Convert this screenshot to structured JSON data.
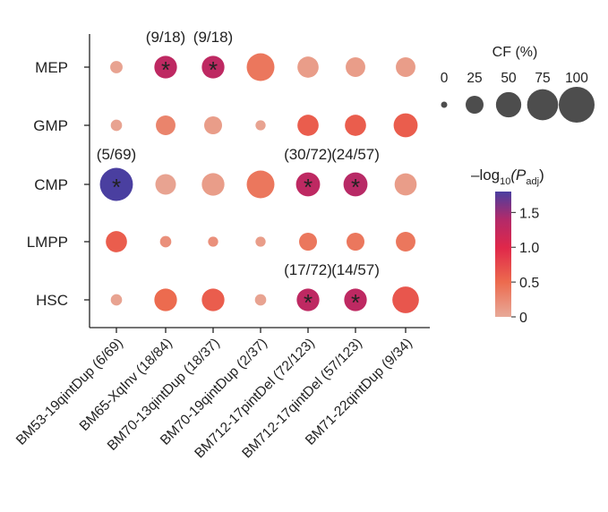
{
  "chart_data": {
    "type": "bubble",
    "rows": [
      "MEP",
      "GMP",
      "CMP",
      "LMPP",
      "HSC"
    ],
    "columns": [
      "BM53-19qintDup (6/69)",
      "BM65-XqInv (18/84)",
      "BM70-13qintDup (18/37)",
      "BM70-19qintDup (2/37)",
      "BM712-17pintDel (72/123)",
      "BM712-17qintDel (57/123)",
      "BM71-22qintDup (9/34)"
    ],
    "cf_percent": [
      [
        12,
        40,
        40,
        60,
        35,
        30,
        30
      ],
      [
        10,
        30,
        25,
        8,
        35,
        35,
        45
      ],
      [
        85,
        33,
        40,
        60,
        45,
        45,
        38
      ],
      [
        35,
        10,
        8,
        8,
        25,
        25,
        30
      ],
      [
        10,
        40,
        40,
        10,
        40,
        40,
        55
      ]
    ],
    "neg_log10_padj": [
      [
        0.05,
        1.3,
        1.3,
        0.4,
        0.1,
        0.1,
        0.1
      ],
      [
        0.05,
        0.3,
        0.1,
        0.05,
        0.6,
        0.6,
        0.6
      ],
      [
        1.9,
        0.05,
        0.1,
        0.4,
        1.3,
        1.35,
        0.1
      ],
      [
        0.6,
        0.2,
        0.2,
        0.1,
        0.4,
        0.4,
        0.4
      ],
      [
        0.05,
        0.5,
        0.6,
        0.05,
        1.3,
        1.3,
        0.65
      ]
    ],
    "significant": [
      [
        false,
        true,
        true,
        false,
        false,
        false,
        false
      ],
      [
        false,
        false,
        false,
        false,
        false,
        false,
        false
      ],
      [
        true,
        false,
        false,
        false,
        true,
        true,
        false
      ],
      [
        false,
        false,
        false,
        false,
        false,
        false,
        false
      ],
      [
        false,
        false,
        false,
        false,
        true,
        true,
        false
      ]
    ],
    "annotations": [
      {
        "row": 0,
        "col": 1,
        "text": "(9/18)"
      },
      {
        "row": 0,
        "col": 2,
        "text": "(9/18)"
      },
      {
        "row": 2,
        "col": 0,
        "text": "(5/69)"
      },
      {
        "row": 2,
        "col": 4,
        "text": "(30/72)"
      },
      {
        "row": 2,
        "col": 5,
        "text": "(24/57)"
      },
      {
        "row": 4,
        "col": 4,
        "text": "(17/72)"
      },
      {
        "row": 4,
        "col": 5,
        "text": "(14/57)"
      }
    ],
    "size_legend": {
      "title": "CF (%)",
      "values": [
        0,
        25,
        50,
        75,
        100
      ],
      "labels": [
        "0",
        "25",
        "50",
        "75",
        "100"
      ]
    },
    "color_legend": {
      "title": "–log",
      "title_sub": "10",
      "title_p": "(P",
      "title_p_sub": "adj",
      "title_close": ")",
      "range": [
        0,
        1.8
      ],
      "ticks": [
        0,
        0.5,
        1.0,
        1.5
      ],
      "tick_labels": [
        "0",
        "0.5",
        "1.0",
        "1.5"
      ]
    },
    "significance_marker": "*"
  }
}
